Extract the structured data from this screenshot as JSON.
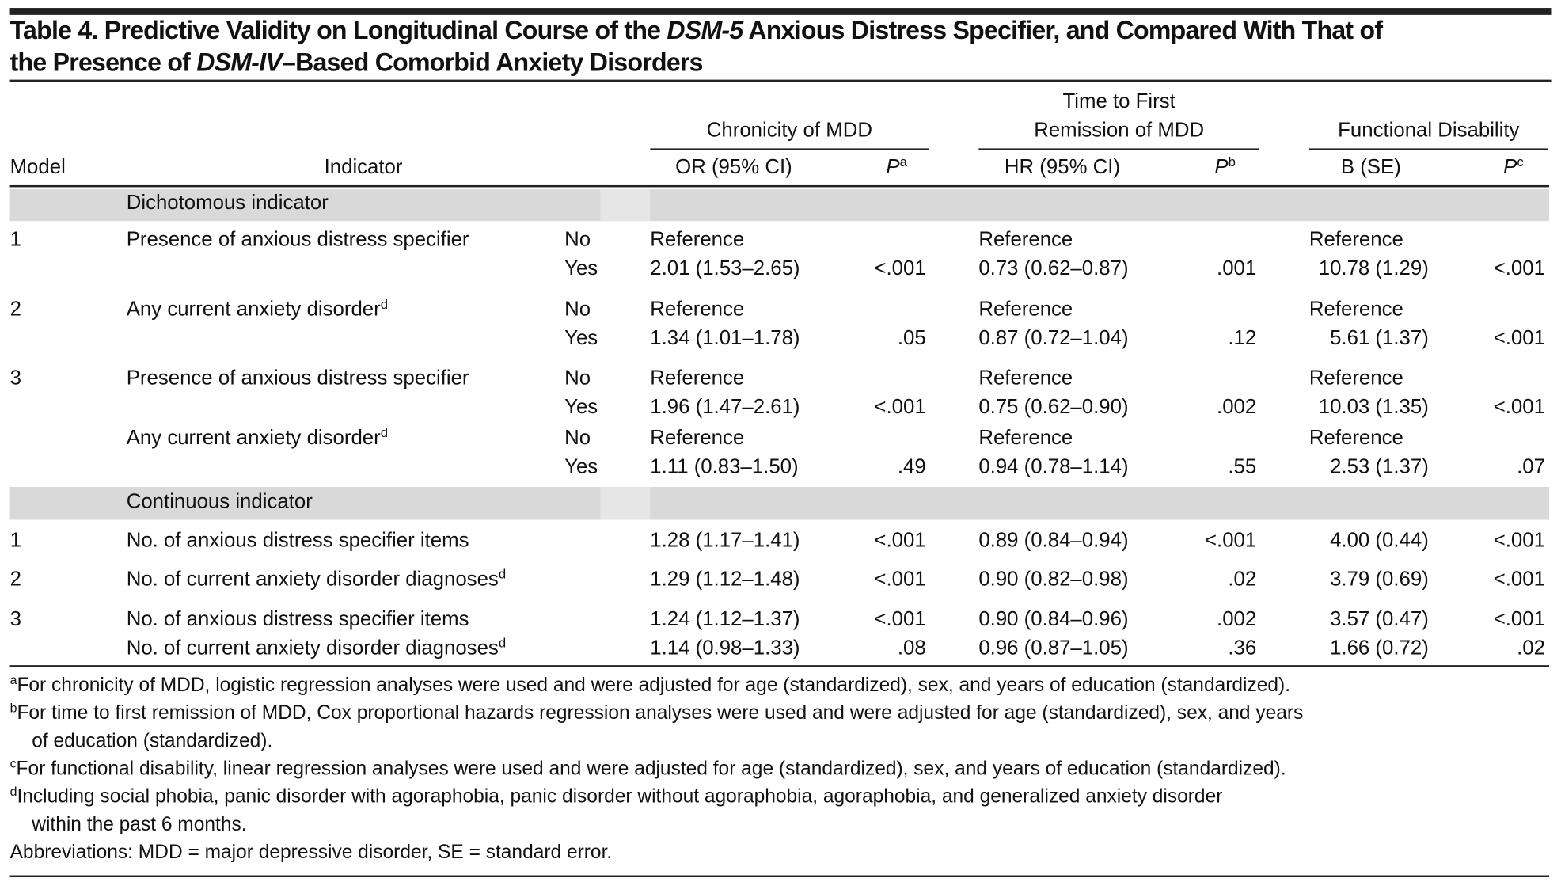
{
  "title": {
    "line1_a": "Table 4. Predictive Validity on Longitudinal Course of the ",
    "line1_italic": "DSM-5",
    "line1_b": " Anxious Distress Specifier, and Compared With That of",
    "line2_a": "the Presence of ",
    "line2_italic": "DSM-IV",
    "line2_b": "–Based Comorbid Anxiety Disorders"
  },
  "header": {
    "model": "Model",
    "indicator": "Indicator",
    "group1": "Chronicity of MDD",
    "group2_line1": "Time to First",
    "group2_line2": "Remission of MDD",
    "group3": "Functional Disability",
    "col_or": "OR (95% CI)",
    "col_p": "P",
    "sup_a": "a",
    "col_hr": "HR (95% CI)",
    "sup_b": "b",
    "col_b": "B (SE)",
    "sup_c": "c"
  },
  "sections": {
    "dichotomous": "Dichotomous indicator",
    "continuous": "Continuous indicator"
  },
  "rows": [
    {
      "model": "1",
      "indicator": "Presence of anxious distress specifier",
      "sup": "",
      "level": "No",
      "or": "Reference",
      "p1": "",
      "hr": "Reference",
      "p2": "",
      "b": "Reference",
      "p3": ""
    },
    {
      "model": "",
      "indicator": "",
      "sup": "",
      "level": "Yes",
      "or": "2.01 (1.53–2.65)",
      "p1": "<.001",
      "hr": "0.73 (0.62–0.87)",
      "p2": ".001",
      "b": "10.78 (1.29)",
      "p3": "<.001"
    },
    {
      "model": "2",
      "indicator": "Any current anxiety disorder",
      "sup": "d",
      "level": "No",
      "or": "Reference",
      "p1": "",
      "hr": "Reference",
      "p2": "",
      "b": "Reference",
      "p3": ""
    },
    {
      "model": "",
      "indicator": "",
      "sup": "",
      "level": "Yes",
      "or": "1.34 (1.01–1.78)",
      "p1": ".05",
      "hr": "0.87 (0.72–1.04)",
      "p2": ".12",
      "b": "5.61 (1.37)",
      "p3": "<.001"
    },
    {
      "model": "3",
      "indicator": "Presence of anxious distress specifier",
      "sup": "",
      "level": "No",
      "or": "Reference",
      "p1": "",
      "hr": "Reference",
      "p2": "",
      "b": "Reference",
      "p3": ""
    },
    {
      "model": "",
      "indicator": "",
      "sup": "",
      "level": "Yes",
      "or": "1.96 (1.47–2.61)",
      "p1": "<.001",
      "hr": "0.75 (0.62–0.90)",
      "p2": ".002",
      "b": "10.03 (1.35)",
      "p3": "<.001"
    },
    {
      "model": "",
      "indicator": "Any current anxiety disorder",
      "sup": "d",
      "level": "No",
      "or": "Reference",
      "p1": "",
      "hr": "Reference",
      "p2": "",
      "b": "Reference",
      "p3": ""
    },
    {
      "model": "",
      "indicator": "",
      "sup": "",
      "level": "Yes",
      "or": "1.11 (0.83–1.50)",
      "p1": ".49",
      "hr": "0.94 (0.78–1.14)",
      "p2": ".55",
      "b": "2.53 (1.37)",
      "p3": ".07"
    },
    {
      "model": "1",
      "indicator": "No. of anxious distress specifier items",
      "sup": "",
      "level": "",
      "or": "1.28 (1.17–1.41)",
      "p1": "<.001",
      "hr": "0.89 (0.84–0.94)",
      "p2": "<.001",
      "b": "4.00 (0.44)",
      "p3": "<.001"
    },
    {
      "model": "2",
      "indicator": "No. of current anxiety disorder diagnoses",
      "sup": "d",
      "level": "",
      "or": "1.29 (1.12–1.48)",
      "p1": "<.001",
      "hr": "0.90 (0.82–0.98)",
      "p2": ".02",
      "b": "3.79 (0.69)",
      "p3": "<.001"
    },
    {
      "model": "3",
      "indicator": "No. of anxious distress specifier items",
      "sup": "",
      "level": "",
      "or": "1.24 (1.12–1.37)",
      "p1": "<.001",
      "hr": "0.90 (0.84–0.96)",
      "p2": ".002",
      "b": "3.57 (0.47)",
      "p3": "<.001"
    },
    {
      "model": "",
      "indicator": "No. of current anxiety disorder diagnoses",
      "sup": "d",
      "level": "",
      "or": "1.14 (0.98–1.33)",
      "p1": ".08",
      "hr": "0.96 (0.87–1.05)",
      "p2": ".36",
      "b": "1.66 (0.72)",
      "p3": ".02"
    }
  ],
  "footnotes": [
    {
      "sup": "a",
      "lines": [
        "For chronicity of MDD, logistic regression analyses were used and were adjusted for age (standardized), sex, and years of education (standardized)."
      ]
    },
    {
      "sup": "b",
      "lines": [
        "For time to first remission of MDD, Cox proportional hazards regression analyses were used and were adjusted for age (standardized), sex, and years",
        "of education (standardized)."
      ]
    },
    {
      "sup": "c",
      "lines": [
        "For functional disability, linear regression analyses were used and were adjusted for age (standardized), sex, and years of education (standardized)."
      ]
    },
    {
      "sup": "d",
      "lines": [
        "Including social phobia, panic disorder with agoraphobia, panic disorder without agoraphobia, agoraphobia, and generalized anxiety disorder",
        "within the past 6 months."
      ]
    },
    {
      "sup": "",
      "lines": [
        "Abbreviations: MDD = major depressive disorder, SE = standard error."
      ]
    }
  ]
}
